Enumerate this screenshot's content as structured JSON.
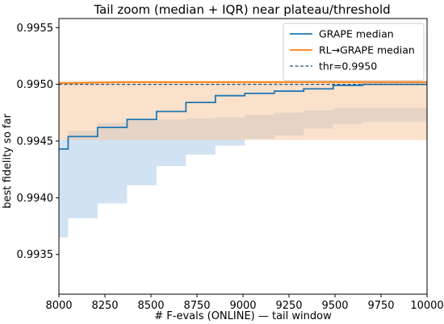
{
  "chart_data": {
    "type": "line",
    "title": "Tail zoom (median + IQR) near plateau/threshold",
    "xlabel": "# F-evals (ONLINE) — tail window",
    "ylabel": "best fidelity so far",
    "xlim": [
      8000,
      10000
    ],
    "ylim": [
      0.99315,
      0.99558
    ],
    "xticks": [
      8000,
      8250,
      8500,
      8750,
      9000,
      9250,
      9500,
      9750,
      10000
    ],
    "xtick_labels": [
      "8000",
      "8250",
      "8500",
      "8750",
      "9000",
      "9250",
      "9500",
      "9750",
      "10000"
    ],
    "yticks": [
      0.9935,
      0.994,
      0.9945,
      0.995,
      0.9955
    ],
    "ytick_labels": [
      "0.9935",
      "0.9940",
      "0.9945",
      "0.9950",
      "0.9955"
    ],
    "grid": false,
    "legend_position": "top-right",
    "series": [
      {
        "name": "GRAPE median",
        "color": "#1f77b4",
        "style": "step",
        "x": [
          8000,
          8050,
          8210,
          8370,
          8530,
          8690,
          8850,
          9010,
          9170,
          9330,
          9490,
          9650,
          10000
        ],
        "y": [
          0.99443,
          0.99454,
          0.99462,
          0.99469,
          0.99476,
          0.99484,
          0.9949,
          0.99492,
          0.99494,
          0.99496,
          0.99499,
          0.995,
          0.995
        ],
        "iqr_low": [
          0.99365,
          0.99382,
          0.99395,
          0.99411,
          0.99428,
          0.99438,
          0.99446,
          0.99452,
          0.99455,
          0.99461,
          0.99465,
          0.99467,
          0.99467
        ],
        "iqr_high": [
          0.99451,
          0.99459,
          0.99466,
          0.99468,
          0.99469,
          0.9947,
          0.99471,
          0.99473,
          0.99475,
          0.99477,
          0.99479,
          0.99479,
          0.99479
        ],
        "iqr_color": "#c6dbef"
      },
      {
        "name": "RL→GRAPE median",
        "color": "#ff7f0e",
        "style": "line",
        "x": [
          8000,
          8370,
          10000
        ],
        "y": [
          0.99501,
          0.99502,
          0.99502
        ],
        "iqr_low": [
          0.99451,
          0.99451,
          0.99451
        ],
        "iqr_high": [
          0.99503,
          0.99503,
          0.99503
        ],
        "iqr_color": "#f5c8a0"
      },
      {
        "name": "thr=0.9950",
        "color": "#1f4e79",
        "style": "dashed",
        "x": [
          8000,
          10000
        ],
        "y": [
          0.995,
          0.995
        ]
      }
    ]
  }
}
